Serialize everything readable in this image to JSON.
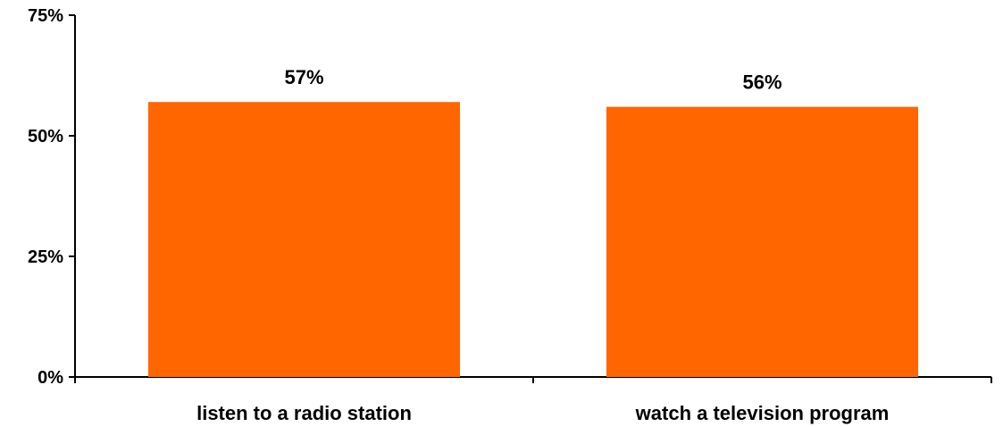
{
  "chart_data": {
    "type": "bar",
    "title": "",
    "xlabel": "",
    "ylabel": "",
    "categories": [
      "listen to a radio station",
      "watch a television program"
    ],
    "values": [
      57,
      56
    ],
    "data_labels": [
      "57%",
      "56%"
    ],
    "ylim": [
      0,
      75
    ],
    "yticks": [
      0,
      25,
      50,
      75
    ],
    "ytick_labels": [
      "0%",
      "25%",
      "50%",
      "75%"
    ],
    "bar_color": "#FF6600",
    "grid": false,
    "legend": "none"
  }
}
